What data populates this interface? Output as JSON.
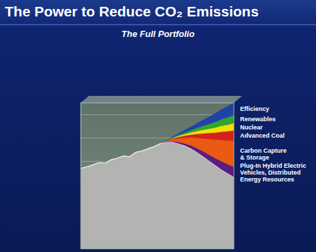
{
  "chart_data": {
    "type": "area",
    "title": "The Power to Reduce CO₂ Emissions",
    "subtitle": "The Full Portfolio",
    "stacked": true,
    "grid": true,
    "tick_labels": false,
    "legend": "right",
    "xlim": [
      0,
      100
    ],
    "ylim": [
      0,
      100
    ],
    "yticks": [
      60,
      76,
      92
    ],
    "x": [
      0,
      4,
      8,
      12,
      16,
      20,
      24,
      28,
      32,
      36,
      40,
      44,
      48,
      52,
      56,
      60,
      64,
      68,
      72,
      76,
      80,
      84,
      88,
      92,
      96,
      100
    ],
    "series": [
      {
        "name": null,
        "color": "#b3b3b1",
        "values": [
          55,
          56,
          57.5,
          59,
          58.5,
          61,
          62,
          63.5,
          63,
          66,
          67,
          68.5,
          70,
          72,
          73,
          73,
          72,
          70.5,
          68.5,
          66,
          63,
          60,
          57,
          54,
          51.5,
          49
        ]
      },
      {
        "name": "Plug-In Hybrid Electric\nVehicles, Distributed\nEnergy Resources",
        "color": "#5b1d80",
        "values": [
          null,
          null,
          null,
          null,
          null,
          null,
          null,
          null,
          null,
          null,
          null,
          null,
          null,
          0,
          0.2,
          0.5,
          1.0,
          1.5,
          2.1,
          2.7,
          3.5,
          4.2,
          4.9,
          5.7,
          6.3,
          7
        ]
      },
      {
        "name": "Carbon Capture\n& Storage",
        "color": "#ea5a12",
        "values": [
          null,
          null,
          null,
          null,
          null,
          null,
          null,
          null,
          null,
          null,
          null,
          null,
          null,
          0,
          0.5,
          1.3,
          2.5,
          3.8,
          5.4,
          7.1,
          8.9,
          10.8,
          12.7,
          14.6,
          16.3,
          18
        ]
      },
      {
        "name": "Advanced Coal",
        "color": "#d6211b",
        "values": [
          null,
          null,
          null,
          null,
          null,
          null,
          null,
          null,
          null,
          null,
          null,
          null,
          null,
          0,
          0.2,
          0.5,
          1.0,
          1.5,
          2.1,
          2.7,
          3.5,
          4.2,
          4.9,
          5.7,
          6.3,
          7
        ]
      },
      {
        "name": "Nuclear",
        "color": "#f3e000",
        "values": [
          null,
          null,
          null,
          null,
          null,
          null,
          null,
          null,
          null,
          null,
          null,
          null,
          null,
          0,
          0.1,
          0.4,
          0.7,
          1.1,
          1.5,
          2.0,
          2.5,
          3.0,
          3.5,
          4.1,
          4.5,
          5
        ]
      },
      {
        "name": "Renewables",
        "color": "#2ea62f",
        "values": [
          null,
          null,
          null,
          null,
          null,
          null,
          null,
          null,
          null,
          null,
          null,
          null,
          null,
          0,
          0.1,
          0.4,
          0.8,
          1.2,
          1.6,
          2.2,
          2.7,
          3.3,
          3.9,
          4.5,
          5.0,
          5.5
        ]
      },
      {
        "name": "Efficiency",
        "color": "#2042a8",
        "values": [
          null,
          null,
          null,
          null,
          null,
          null,
          null,
          null,
          null,
          null,
          null,
          null,
          null,
          0,
          0.2,
          0.6,
          1.2,
          1.8,
          2.5,
          3.3,
          4.2,
          5.1,
          6.0,
          6.9,
          7.7,
          8.5
        ]
      }
    ]
  }
}
